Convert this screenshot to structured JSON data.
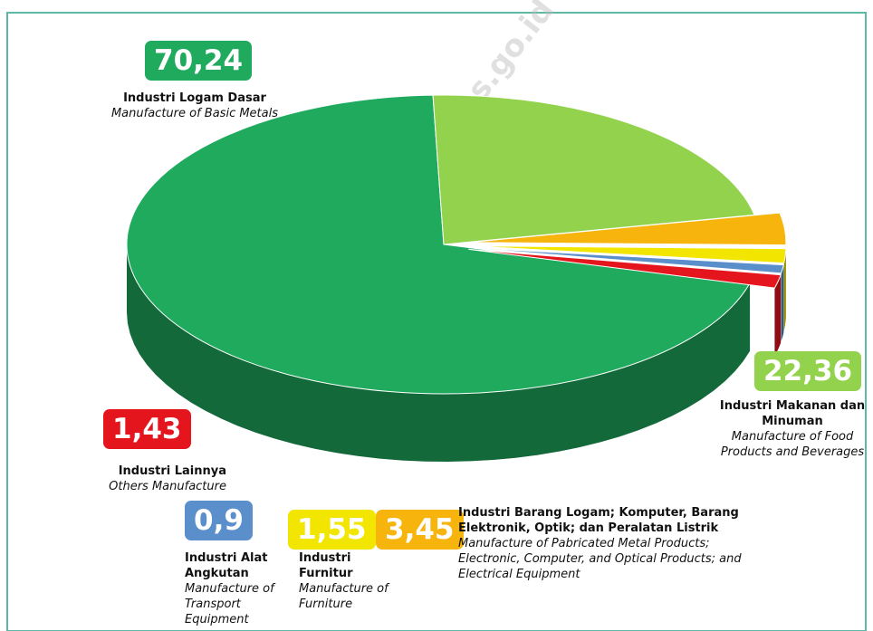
{
  "chart_data": {
    "type": "pie",
    "watermark": "https://sultra.bps.go.id",
    "categories": [
      "Industri Logam Dasar",
      "Industri Makanan dan Minuman",
      "Industri Barang Logam; Komputer, Barang Elektronik, Optik; dan Peralatan Listrik",
      "Industri Furnitur",
      "Industri Alat Angkutan",
      "Industri Lainnya"
    ],
    "categories_en": [
      "Manufacture of Basic Metals",
      "Manufacture of Food Products and Beverages",
      "Manufacture of Pabricated Metal Products; Electronic, Computer, and Optical Products; and Electrical Equipment",
      "Manufacture of Furniture",
      "Manufacture of Transport Equipment",
      "Others Manufacture"
    ],
    "values": [
      70.24,
      22.36,
      3.45,
      1.55,
      0.9,
      1.43
    ],
    "value_labels": [
      "70,24",
      "22,36",
      "3,45",
      "1,55",
      "0,9",
      "1,43"
    ],
    "colors": [
      "#1faa5e",
      "#93d24c",
      "#f6b40c",
      "#f2e600",
      "#5a8fcb",
      "#e5151d"
    ]
  }
}
